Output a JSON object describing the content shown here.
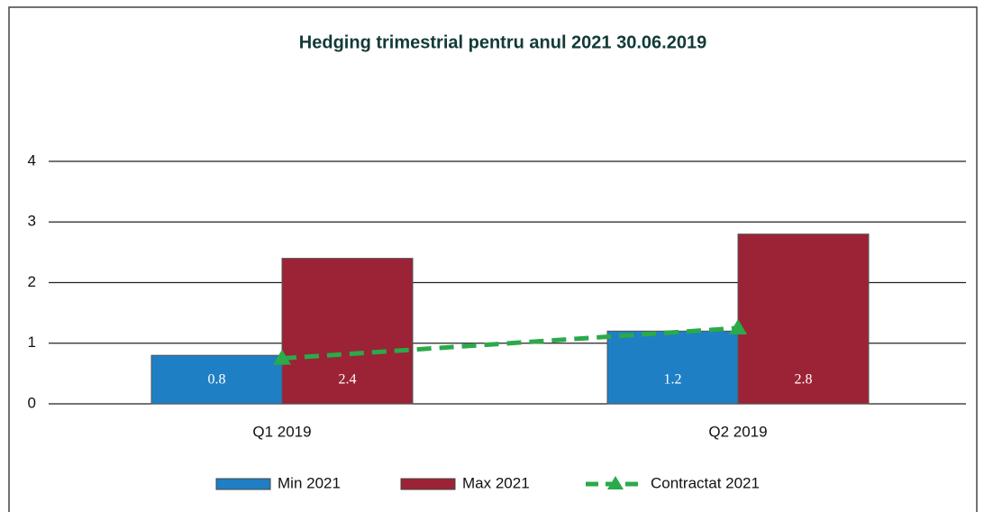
{
  "chart_data": {
    "type": "bar",
    "title": "Hedging trimestrial pentru anul 2021 30.06.2019",
    "categories": [
      "Q1 2019",
      "Q2 2019"
    ],
    "series": [
      {
        "name": "Min 2021",
        "color": "#1f7fc4",
        "values": [
          0.8,
          1.2
        ]
      },
      {
        "name": "Max 2021",
        "color": "#9b2335",
        "values": [
          2.4,
          2.8
        ]
      },
      {
        "name": "Contractat 2021",
        "color": "#2aaa4a",
        "type": "line",
        "values": [
          0.75,
          1.25
        ]
      }
    ],
    "ylim": [
      0,
      4
    ],
    "yticks": [
      0,
      1,
      2,
      3,
      4
    ],
    "grid": true,
    "legend": "bottom",
    "data_labels": true
  }
}
